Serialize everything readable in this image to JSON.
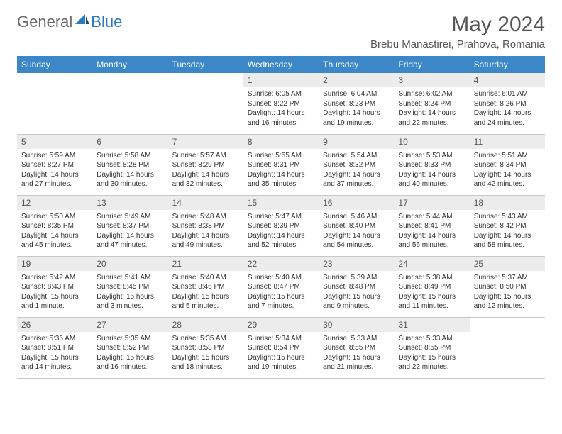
{
  "logo": {
    "general": "General",
    "blue": "Blue"
  },
  "title": "May 2024",
  "location": "Brebu Manastirei, Prahova, Romania",
  "colors": {
    "header_bg": "#3b87c8",
    "header_text": "#ffffff",
    "daynum_bg": "#ececec",
    "text": "#333333",
    "title_text": "#555555",
    "logo_gray": "#6b6b6b",
    "logo_blue": "#2a7ac0",
    "border": "#c8c8c8"
  },
  "daynames": [
    "Sunday",
    "Monday",
    "Tuesday",
    "Wednesday",
    "Thursday",
    "Friday",
    "Saturday"
  ],
  "weeks": [
    [
      null,
      null,
      null,
      {
        "n": "1",
        "sr": "6:05 AM",
        "ss": "8:22 PM",
        "dl": "14 hours and 16 minutes."
      },
      {
        "n": "2",
        "sr": "6:04 AM",
        "ss": "8:23 PM",
        "dl": "14 hours and 19 minutes."
      },
      {
        "n": "3",
        "sr": "6:02 AM",
        "ss": "8:24 PM",
        "dl": "14 hours and 22 minutes."
      },
      {
        "n": "4",
        "sr": "6:01 AM",
        "ss": "8:26 PM",
        "dl": "14 hours and 24 minutes."
      }
    ],
    [
      {
        "n": "5",
        "sr": "5:59 AM",
        "ss": "8:27 PM",
        "dl": "14 hours and 27 minutes."
      },
      {
        "n": "6",
        "sr": "5:58 AM",
        "ss": "8:28 PM",
        "dl": "14 hours and 30 minutes."
      },
      {
        "n": "7",
        "sr": "5:57 AM",
        "ss": "8:29 PM",
        "dl": "14 hours and 32 minutes."
      },
      {
        "n": "8",
        "sr": "5:55 AM",
        "ss": "8:31 PM",
        "dl": "14 hours and 35 minutes."
      },
      {
        "n": "9",
        "sr": "5:54 AM",
        "ss": "8:32 PM",
        "dl": "14 hours and 37 minutes."
      },
      {
        "n": "10",
        "sr": "5:53 AM",
        "ss": "8:33 PM",
        "dl": "14 hours and 40 minutes."
      },
      {
        "n": "11",
        "sr": "5:51 AM",
        "ss": "8:34 PM",
        "dl": "14 hours and 42 minutes."
      }
    ],
    [
      {
        "n": "12",
        "sr": "5:50 AM",
        "ss": "8:35 PM",
        "dl": "14 hours and 45 minutes."
      },
      {
        "n": "13",
        "sr": "5:49 AM",
        "ss": "8:37 PM",
        "dl": "14 hours and 47 minutes."
      },
      {
        "n": "14",
        "sr": "5:48 AM",
        "ss": "8:38 PM",
        "dl": "14 hours and 49 minutes."
      },
      {
        "n": "15",
        "sr": "5:47 AM",
        "ss": "8:39 PM",
        "dl": "14 hours and 52 minutes."
      },
      {
        "n": "16",
        "sr": "5:46 AM",
        "ss": "8:40 PM",
        "dl": "14 hours and 54 minutes."
      },
      {
        "n": "17",
        "sr": "5:44 AM",
        "ss": "8:41 PM",
        "dl": "14 hours and 56 minutes."
      },
      {
        "n": "18",
        "sr": "5:43 AM",
        "ss": "8:42 PM",
        "dl": "14 hours and 58 minutes."
      }
    ],
    [
      {
        "n": "19",
        "sr": "5:42 AM",
        "ss": "8:43 PM",
        "dl": "15 hours and 1 minute."
      },
      {
        "n": "20",
        "sr": "5:41 AM",
        "ss": "8:45 PM",
        "dl": "15 hours and 3 minutes."
      },
      {
        "n": "21",
        "sr": "5:40 AM",
        "ss": "8:46 PM",
        "dl": "15 hours and 5 minutes."
      },
      {
        "n": "22",
        "sr": "5:40 AM",
        "ss": "8:47 PM",
        "dl": "15 hours and 7 minutes."
      },
      {
        "n": "23",
        "sr": "5:39 AM",
        "ss": "8:48 PM",
        "dl": "15 hours and 9 minutes."
      },
      {
        "n": "24",
        "sr": "5:38 AM",
        "ss": "8:49 PM",
        "dl": "15 hours and 11 minutes."
      },
      {
        "n": "25",
        "sr": "5:37 AM",
        "ss": "8:50 PM",
        "dl": "15 hours and 12 minutes."
      }
    ],
    [
      {
        "n": "26",
        "sr": "5:36 AM",
        "ss": "8:51 PM",
        "dl": "15 hours and 14 minutes."
      },
      {
        "n": "27",
        "sr": "5:35 AM",
        "ss": "8:52 PM",
        "dl": "15 hours and 16 minutes."
      },
      {
        "n": "28",
        "sr": "5:35 AM",
        "ss": "8:53 PM",
        "dl": "15 hours and 18 minutes."
      },
      {
        "n": "29",
        "sr": "5:34 AM",
        "ss": "8:54 PM",
        "dl": "15 hours and 19 minutes."
      },
      {
        "n": "30",
        "sr": "5:33 AM",
        "ss": "8:55 PM",
        "dl": "15 hours and 21 minutes."
      },
      {
        "n": "31",
        "sr": "5:33 AM",
        "ss": "8:55 PM",
        "dl": "15 hours and 22 minutes."
      },
      null
    ]
  ],
  "labels": {
    "sunrise": "Sunrise: ",
    "sunset": "Sunset: ",
    "daylight": "Daylight: "
  }
}
